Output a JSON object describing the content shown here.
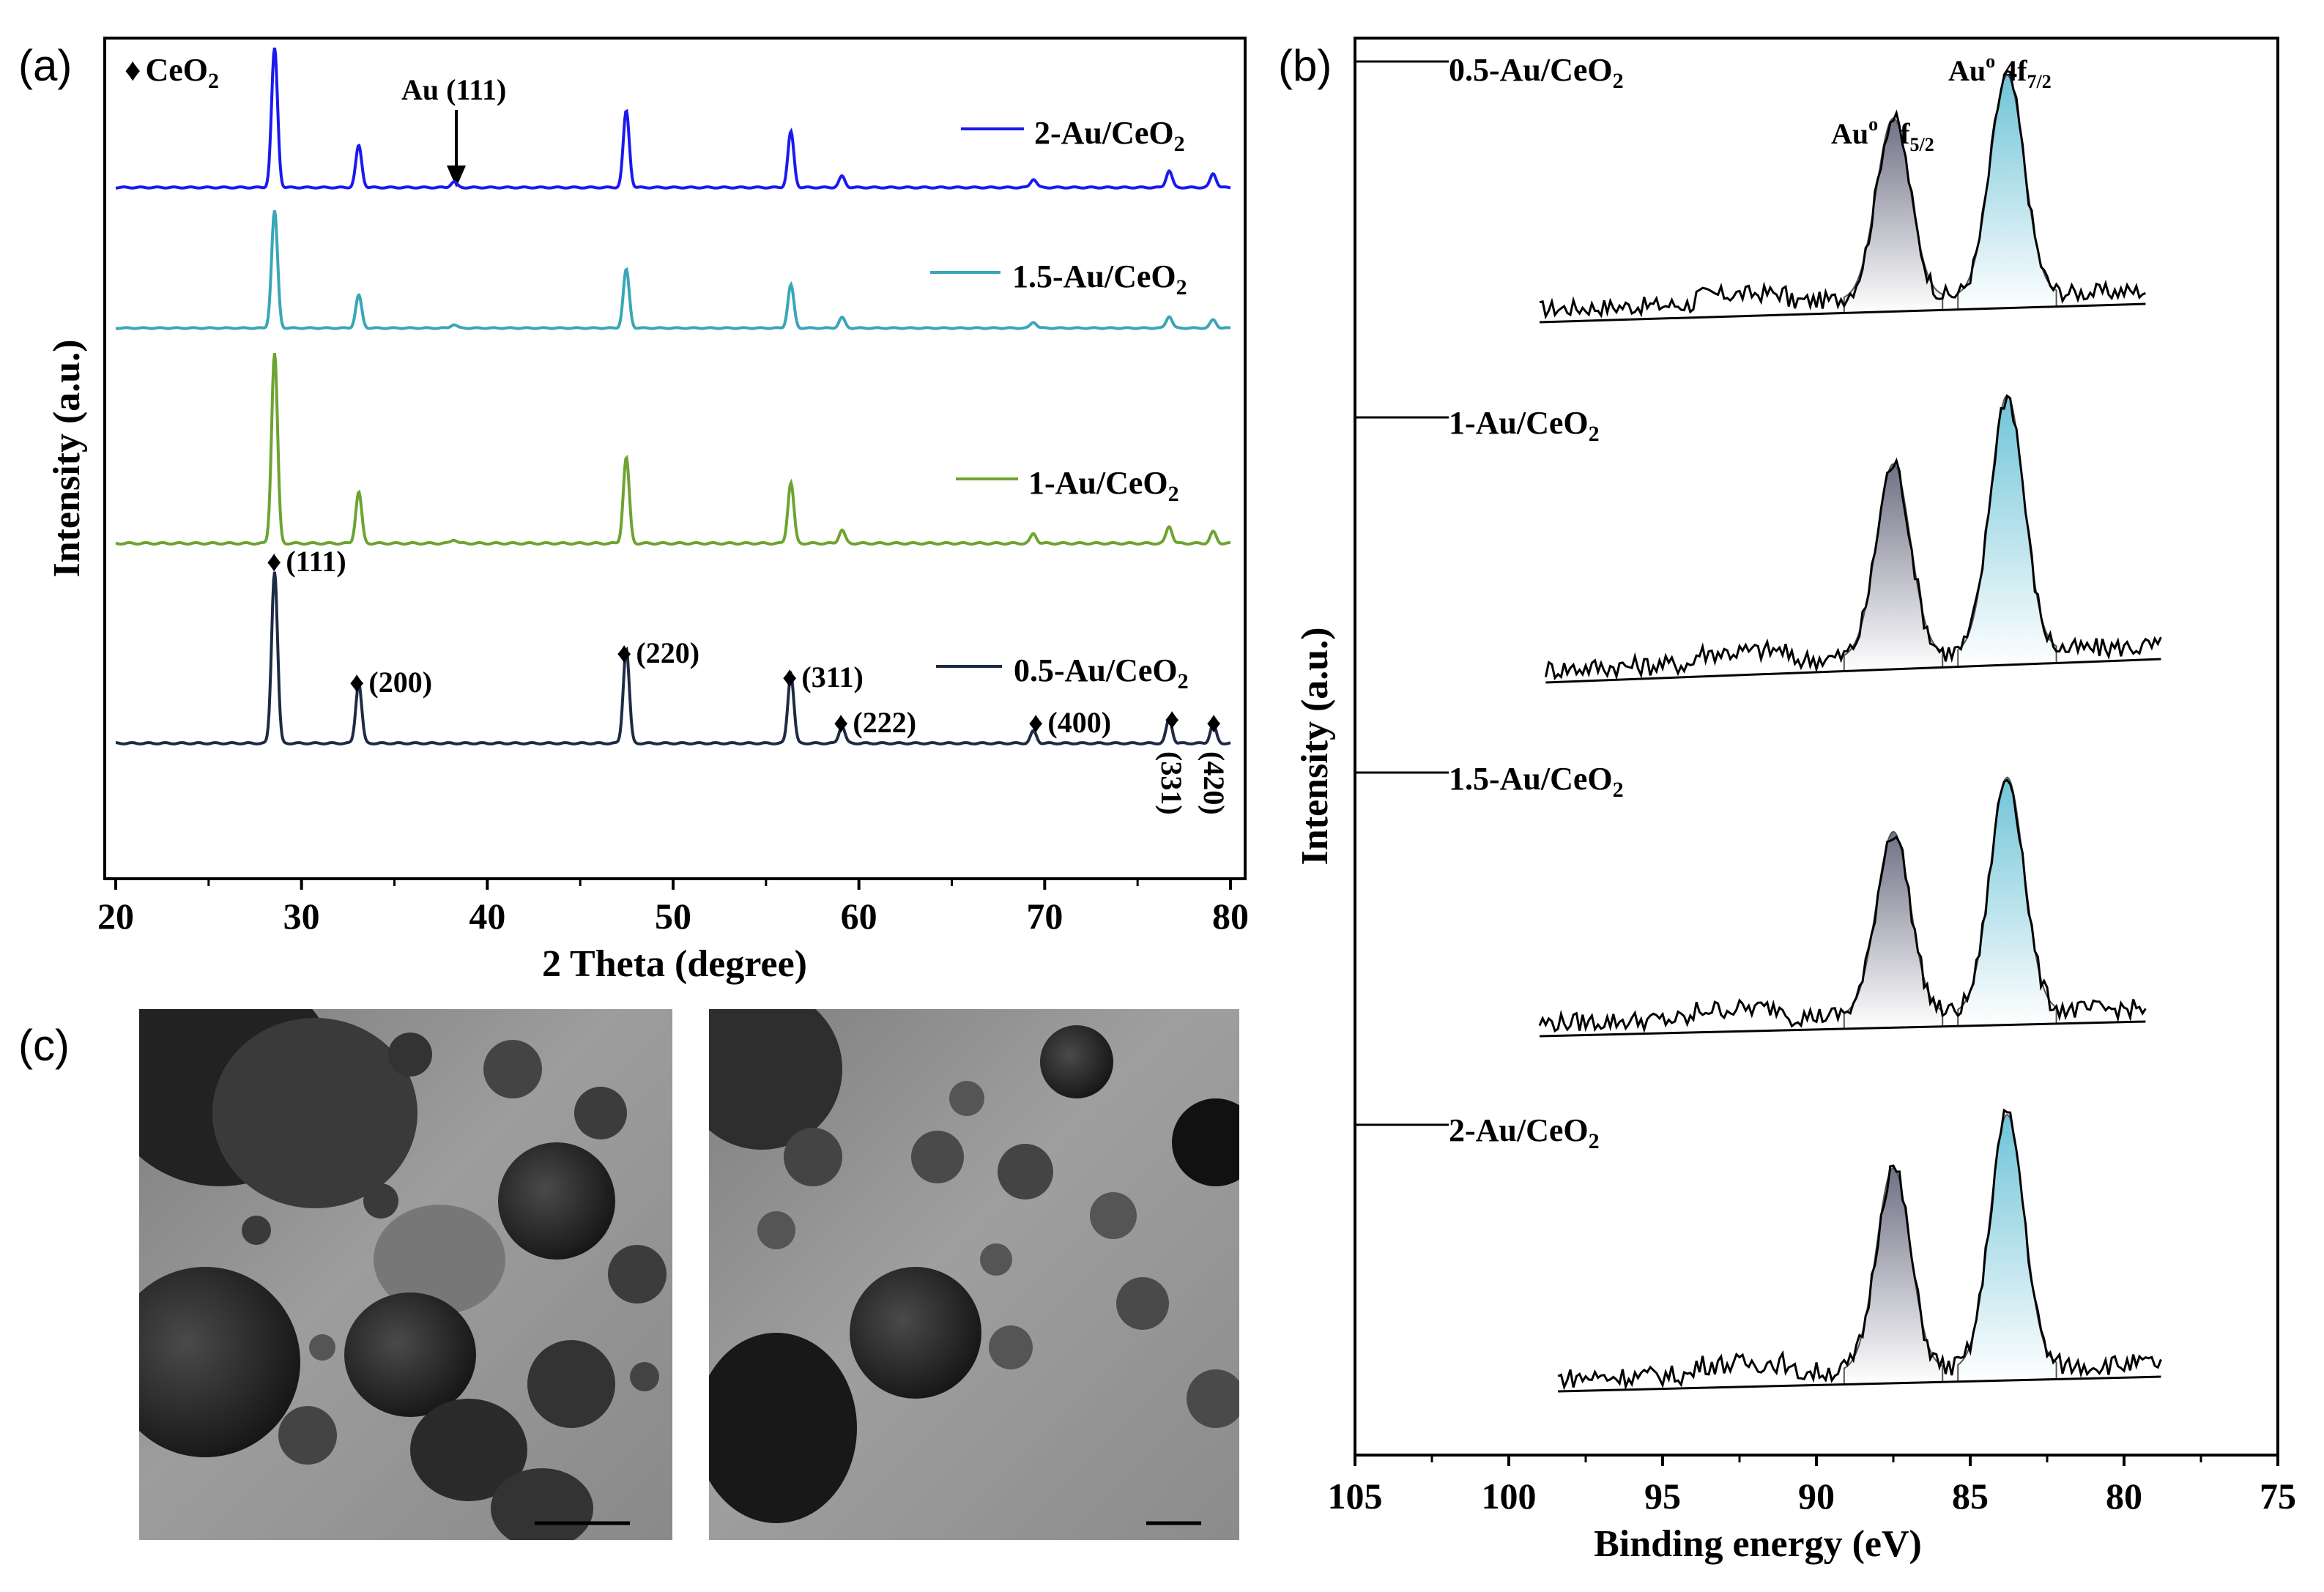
{
  "panels": {
    "a": {
      "label": "(a)"
    },
    "b": {
      "label": "(b)"
    },
    "c": {
      "label": "(c)"
    }
  },
  "colors": {
    "s05": "#1e2b45",
    "s1": "#6ea331",
    "s15": "#3aa6b8",
    "s2": "#1a1aef",
    "xps_left_fill": "#6f7185",
    "xps_right_fill": "#6fc4d8"
  },
  "chart_data": [
    {
      "type": "line",
      "title": "",
      "xlabel": "2 Theta (degree)",
      "ylabel": "Intensity (a.u.)",
      "xlim": [
        20,
        80
      ],
      "xticks": [
        "20",
        "30",
        "40",
        "50",
        "60",
        "70",
        "80"
      ],
      "legend_marker": "♦",
      "legend_text": "CeO",
      "legend_sub": "2",
      "au_annotation": "Au (111)",
      "au_position": 38.2,
      "series": [
        {
          "name": "0.5-Au/CeO",
          "sub": "2",
          "colorKey": "s05",
          "peaks": [
            [
              28.55,
              1.0
            ],
            [
              33.08,
              0.35
            ],
            [
              47.48,
              0.55
            ],
            [
              56.34,
              0.4
            ],
            [
              59.09,
              0.1
            ],
            [
              69.4,
              0.07
            ],
            [
              76.7,
              0.14
            ],
            [
              79.07,
              0.11
            ]
          ]
        },
        {
          "name": "1-Au/CeO",
          "sub": "2",
          "colorKey": "s1",
          "peaks": [
            [
              28.55,
              1.0
            ],
            [
              33.08,
              0.27
            ],
            [
              38.2,
              0.02
            ],
            [
              47.48,
              0.45
            ],
            [
              56.34,
              0.32
            ],
            [
              59.09,
              0.07
            ],
            [
              69.4,
              0.05
            ],
            [
              76.7,
              0.09
            ],
            [
              79.07,
              0.06
            ]
          ]
        },
        {
          "name": "1.5-Au/CeO",
          "sub": "2",
          "colorKey": "s15",
          "peaks": [
            [
              28.55,
              1.0
            ],
            [
              33.08,
              0.28
            ],
            [
              38.2,
              0.03
            ],
            [
              47.48,
              0.5
            ],
            [
              56.34,
              0.37
            ],
            [
              59.09,
              0.09
            ],
            [
              69.4,
              0.05
            ],
            [
              76.7,
              0.1
            ],
            [
              79.07,
              0.07
            ]
          ]
        },
        {
          "name": "2-Au/CeO",
          "sub": "2",
          "colorKey": "s2",
          "peaks": [
            [
              28.55,
              1.0
            ],
            [
              33.08,
              0.3
            ],
            [
              38.2,
              0.04
            ],
            [
              47.48,
              0.55
            ],
            [
              56.34,
              0.4
            ],
            [
              59.09,
              0.08
            ],
            [
              69.4,
              0.06
            ],
            [
              76.7,
              0.12
            ],
            [
              79.07,
              0.1
            ]
          ]
        }
      ],
      "miller_indices": [
        {
          "two_theta": 28.55,
          "label": "(111)"
        },
        {
          "two_theta": 33.08,
          "label": "(200)"
        },
        {
          "two_theta": 47.48,
          "label": "(220)"
        },
        {
          "two_theta": 56.34,
          "label": "(311)"
        },
        {
          "two_theta": 59.09,
          "label": "(222)"
        },
        {
          "two_theta": 69.4,
          "label": "(400)"
        },
        {
          "two_theta": 76.7,
          "label": "(331)"
        },
        {
          "two_theta": 79.07,
          "label": "(420)"
        }
      ]
    },
    {
      "type": "line",
      "title": "",
      "xlabel": "Binding energy (eV)",
      "ylabel": "Intensity (a.u.)",
      "xlim": [
        105,
        75
      ],
      "xticks": [
        "105",
        "100",
        "95",
        "90",
        "85",
        "80",
        "75"
      ],
      "peak_left_label": "Au",
      "peak_left_sup": "o",
      "peak_left_orbital": " 4f",
      "peak_left_sub": "5/2",
      "peak_right_label": "Au",
      "peak_right_sup": "o",
      "peak_right_orbital": " 4f",
      "peak_right_sub": "7/2",
      "peak_positions": [
        87.5,
        83.8
      ],
      "series": [
        {
          "name": "0.5-Au/CeO",
          "sub": "2",
          "range": [
            99,
            79.3
          ],
          "heights": [
            0.82,
            1.0
          ]
        },
        {
          "name": "1-Au/CeO",
          "sub": "2",
          "range": [
            98.8,
            78.8
          ],
          "heights": [
            0.75,
            1.0
          ]
        },
        {
          "name": "1.5-Au/CeO",
          "sub": "2",
          "range": [
            99,
            79.3
          ],
          "heights": [
            0.78,
            1.0
          ]
        },
        {
          "name": "2-Au/CeO",
          "sub": "2",
          "range": [
            98.4,
            78.8
          ],
          "heights": [
            0.8,
            1.0
          ]
        }
      ]
    }
  ]
}
